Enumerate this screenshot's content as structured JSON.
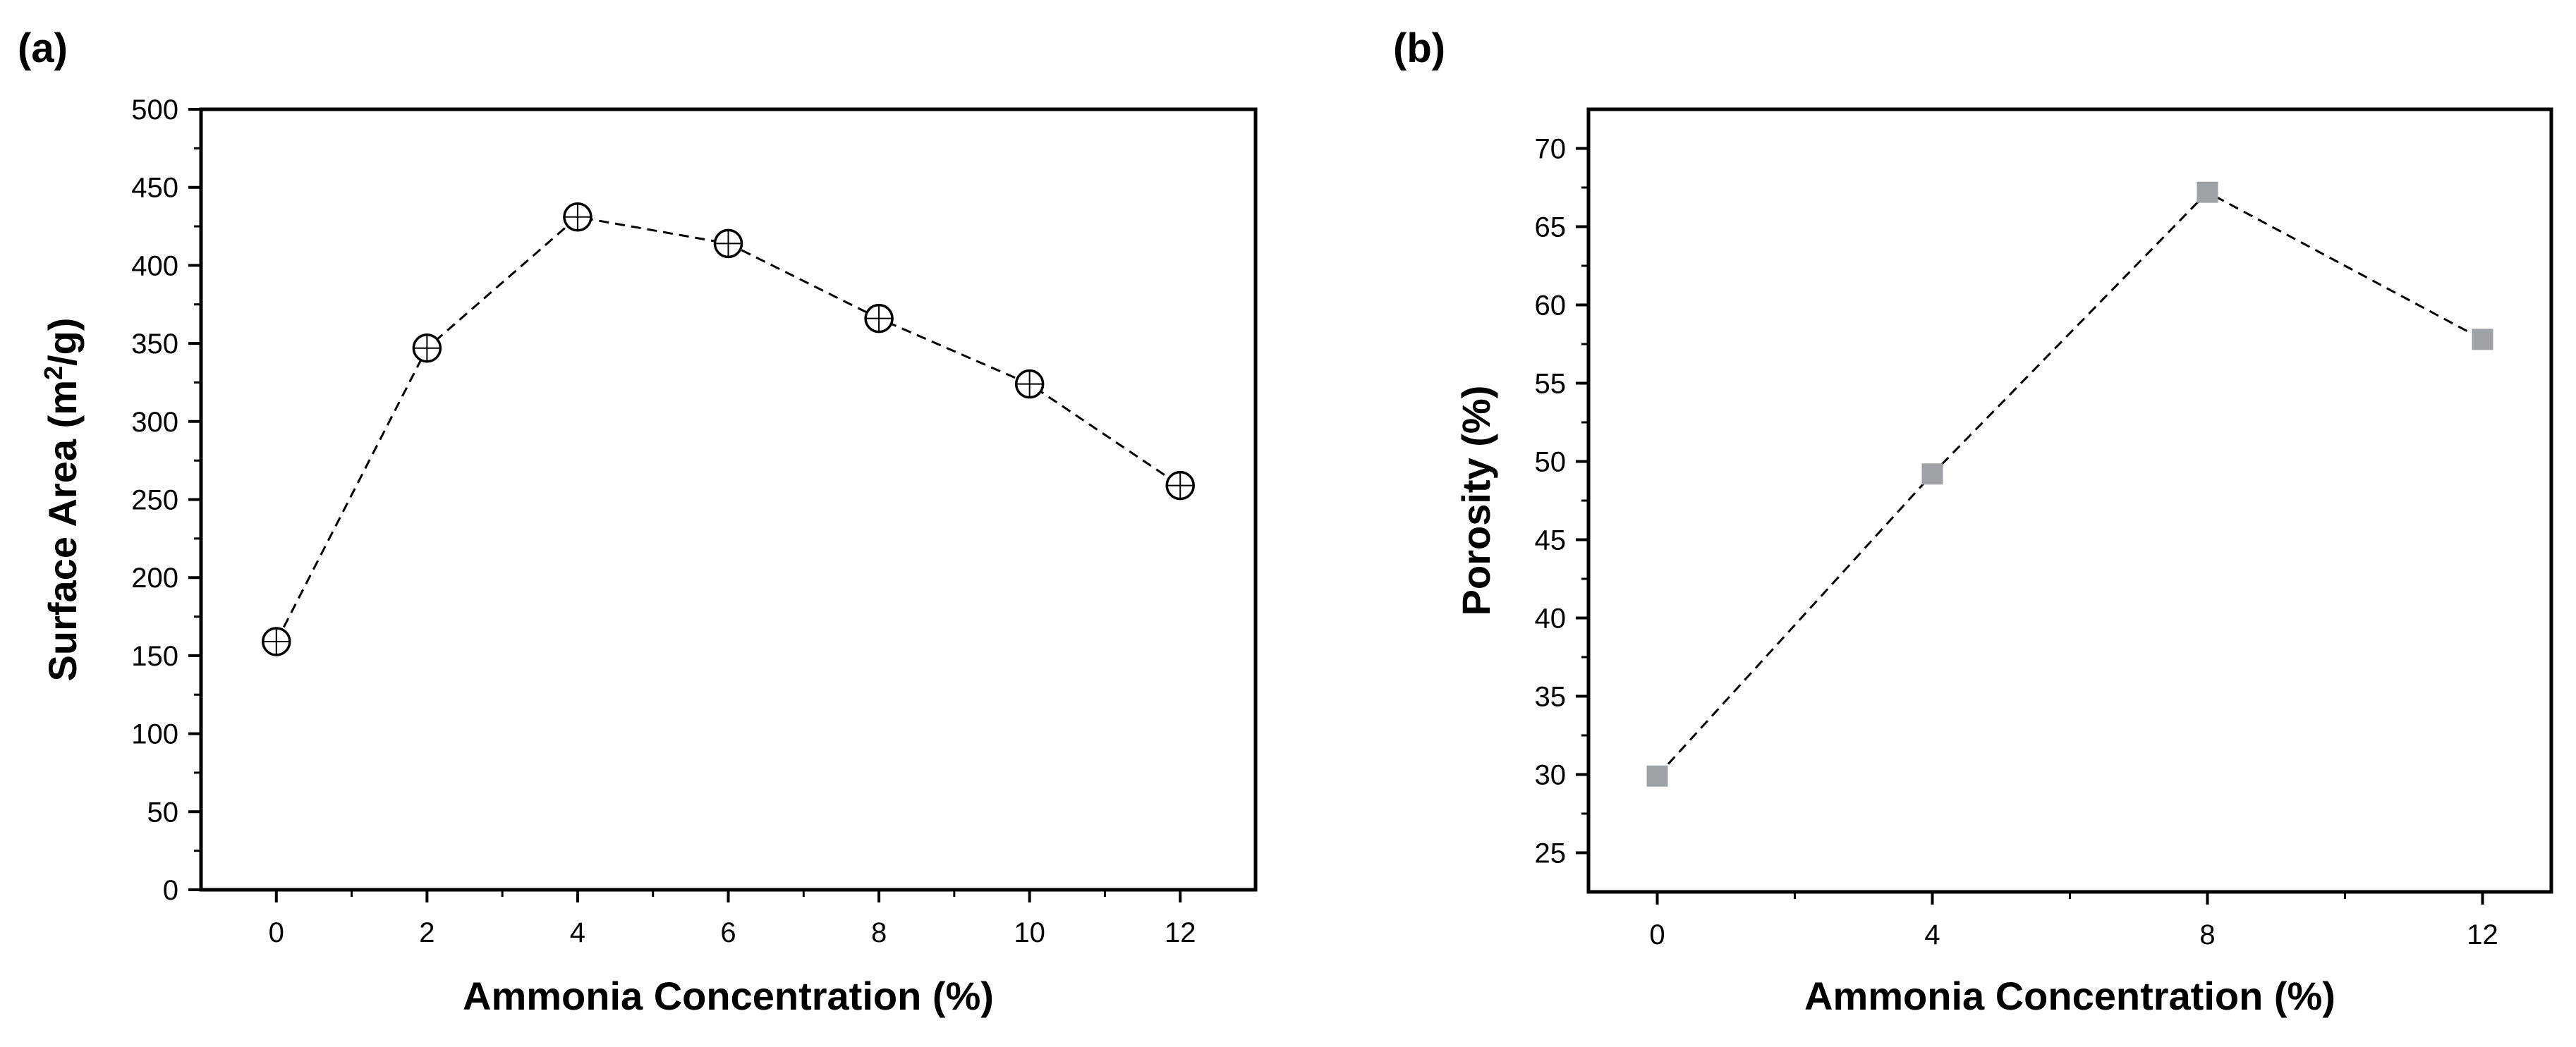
{
  "chart_data": [
    {
      "panel": "(a)",
      "type": "line",
      "marker": "circle-crosshair",
      "line_style": "dashed",
      "xlabel": "Ammonia Concentration (%)",
      "ylabel_main": "Surface Area (m",
      "ylabel_sup": "2",
      "ylabel_tail": "/g)",
      "x": [
        0,
        2,
        4,
        6,
        8,
        10,
        12
      ],
      "y": [
        159,
        347,
        431,
        414,
        366,
        324,
        259
      ],
      "xlim": [
        -1,
        13
      ],
      "ylim": [
        0,
        500
      ],
      "xticks": [
        0,
        2,
        4,
        6,
        8,
        10,
        12
      ],
      "xtick_labels": [
        "0",
        "2",
        "4",
        "6",
        "8",
        "10",
        "12"
      ],
      "yticks": [
        0,
        50,
        100,
        150,
        200,
        250,
        300,
        350,
        400,
        450,
        500
      ],
      "ytick_labels": [
        "0",
        "50",
        "100",
        "150",
        "200",
        "250",
        "300",
        "350",
        "400",
        "450",
        "500"
      ],
      "grid": false
    },
    {
      "panel": "(b)",
      "type": "line",
      "marker": "square",
      "marker_color": "#9ea2a6",
      "line_style": "dashed",
      "xlabel": "Ammonia Concentration (%)",
      "ylabel": "Porosity (%)",
      "x": [
        0,
        4,
        8,
        12
      ],
      "y": [
        29.9,
        49.2,
        67.2,
        57.8
      ],
      "xlim": [
        -1,
        13
      ],
      "ylim": [
        22.5,
        72.5
      ],
      "xticks": [
        0,
        4,
        8,
        12
      ],
      "xtick_labels": [
        "0",
        "4",
        "8",
        "12"
      ],
      "yticks": [
        25,
        30,
        35,
        40,
        45,
        50,
        55,
        60,
        65,
        70
      ],
      "ytick_labels": [
        "25",
        "30",
        "35",
        "40",
        "45",
        "50",
        "55",
        "60",
        "65",
        "70"
      ],
      "grid": false
    }
  ]
}
